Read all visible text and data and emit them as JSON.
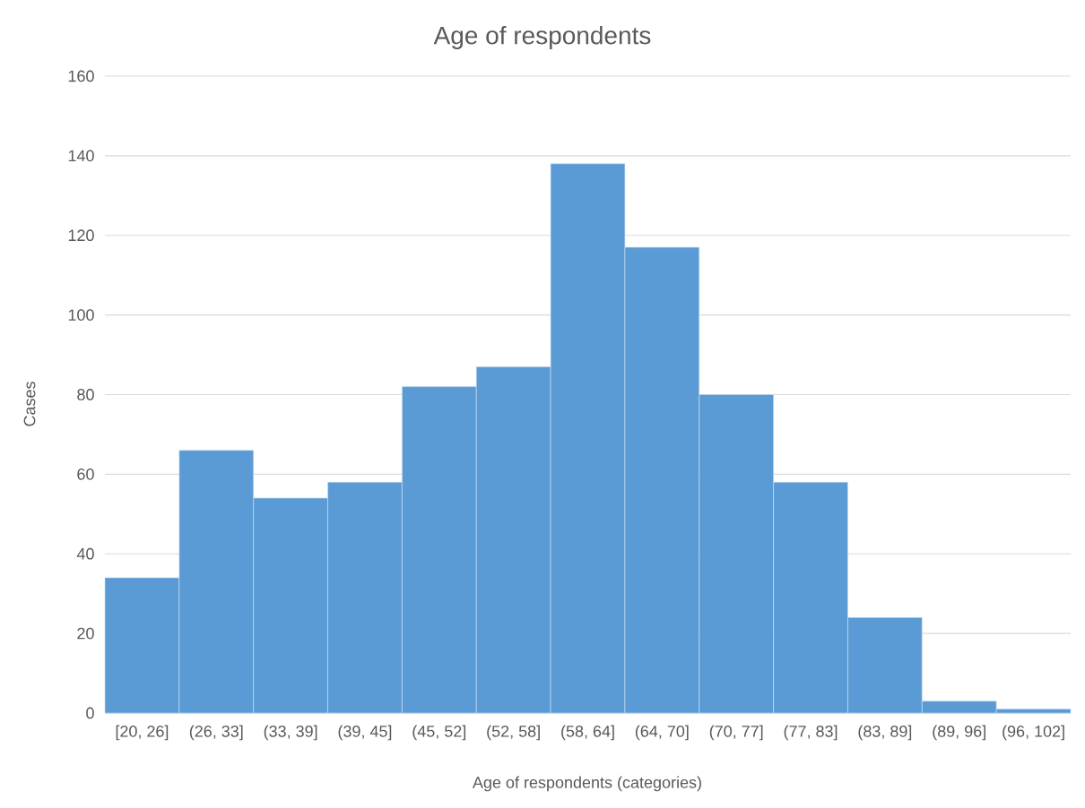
{
  "chart_data": {
    "type": "bar",
    "title": "Age of respondents",
    "xlabel": "Age  of respondents (categories)",
    "ylabel": "Cases",
    "categories": [
      "[20, 26]",
      "(26, 33]",
      "(33, 39]",
      "(39, 45]",
      "(45, 52]",
      "(52, 58]",
      "(58, 64]",
      "(64, 70]",
      "(70, 77]",
      "(77, 83]",
      "(83, 89]",
      "(89, 96]",
      "(96, 102]"
    ],
    "values": [
      34,
      66,
      54,
      58,
      82,
      87,
      138,
      117,
      80,
      58,
      24,
      3,
      1
    ],
    "color": "#5b9bd5",
    "ylim": [
      0,
      160
    ],
    "yticks": [
      0,
      20,
      40,
      60,
      80,
      100,
      120,
      140,
      160
    ],
    "grid": "y"
  }
}
